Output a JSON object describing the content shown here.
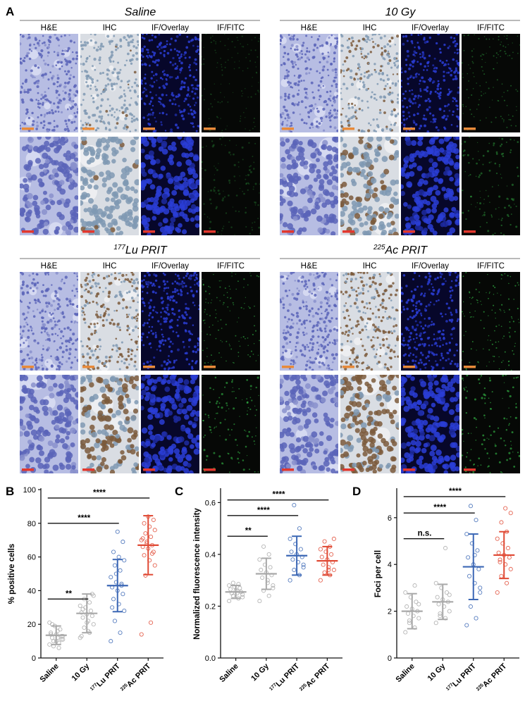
{
  "figure": {
    "panel_a_label": "A",
    "column_headers": [
      "H&E",
      "IHC",
      "IF/Overlay",
      "IF/FITC"
    ],
    "groups": [
      {
        "title_sup": "",
        "title": "Saline"
      },
      {
        "title_sup": "",
        "title": "10 Gy"
      },
      {
        "title_sup": "177",
        "title": "Lu PRIT"
      },
      {
        "title_sup": "225",
        "title": "Ac PRIT"
      }
    ],
    "colors": {
      "he_bg": "#b7bde3",
      "he_cell": "#5a64b8",
      "ihc_bg": "#d9dde3",
      "ihc_nuc_neg": "#7f99b3",
      "ihc_nuc_pos": "#7b5a3c",
      "if_bg": "#07072a",
      "if_nuc": "#2a3dd6",
      "fitc_bg": "#060806",
      "fitc_dot": "#36c24a",
      "scalebar_low": "#e88a3a",
      "scalebar_high": "#e2382e",
      "grey": "#a9a9a9",
      "blue": "#3b67b5",
      "red": "#e04a35"
    }
  },
  "chart_data": [
    {
      "panel": "B",
      "type": "scatter",
      "ylabel": "% positive cells",
      "ylim": [
        0,
        100
      ],
      "yticks": [
        0,
        20,
        40,
        60,
        80,
        100
      ],
      "categories": [
        {
          "pre": "",
          "sup": "",
          "post": "Saline"
        },
        {
          "pre": "",
          "sup": "",
          "post": "10 Gy"
        },
        {
          "pre": "",
          "sup": "177",
          "post": "Lu PRIT"
        },
        {
          "pre": "",
          "sup": "225",
          "post": "Ac PRIT"
        }
      ],
      "means": [
        13.5,
        26.5,
        43,
        67
      ],
      "sd": [
        5.5,
        11.5,
        15.5,
        17.5
      ],
      "points": [
        [
          8,
          9,
          10,
          11,
          12,
          12,
          13,
          14,
          15,
          17,
          19,
          21,
          6,
          7,
          13,
          16,
          20,
          11,
          10,
          14
        ],
        [
          12,
          15,
          18,
          20,
          22,
          24,
          25,
          26,
          27,
          28,
          30,
          31,
          33,
          35,
          37,
          16,
          29,
          38,
          21,
          13
        ],
        [
          10,
          15,
          22,
          28,
          32,
          35,
          38,
          40,
          42,
          43,
          45,
          48,
          52,
          55,
          58,
          60,
          63,
          69,
          75,
          30,
          44,
          50
        ],
        [
          14,
          21,
          49,
          55,
          58,
          61,
          63,
          65,
          66,
          67,
          68,
          70,
          72,
          74,
          76,
          78,
          80,
          82,
          84,
          71,
          62,
          69
        ]
      ],
      "significance": [
        {
          "from": 0,
          "to": 1,
          "label": "**"
        },
        {
          "from": 0,
          "to": 2,
          "label": "****"
        },
        {
          "from": 0,
          "to": 3,
          "label": "****"
        }
      ],
      "bracket_y": [
        35,
        80,
        95
      ]
    },
    {
      "panel": "C",
      "type": "scatter",
      "ylabel": "Normalized fluorescence intensity",
      "ylim": [
        0,
        0.65
      ],
      "yticks": [
        "0.0",
        "0.2",
        "0.4",
        "0.6"
      ],
      "categories": [
        {
          "pre": "",
          "sup": "",
          "post": "Saline"
        },
        {
          "pre": "",
          "sup": "",
          "post": "10 Gy"
        },
        {
          "pre": "",
          "sup": "177",
          "post": "Lu PRIT"
        },
        {
          "pre": "",
          "sup": "225",
          "post": "Ac PRIT"
        }
      ],
      "means": [
        0.255,
        0.325,
        0.395,
        0.375
      ],
      "sd": [
        0.025,
        0.06,
        0.075,
        0.055
      ],
      "points": [
        [
          0.22,
          0.23,
          0.24,
          0.245,
          0.25,
          0.25,
          0.255,
          0.26,
          0.265,
          0.27,
          0.275,
          0.28,
          0.285,
          0.29,
          0.235,
          0.26
        ],
        [
          0.22,
          0.24,
          0.26,
          0.28,
          0.3,
          0.31,
          0.32,
          0.33,
          0.34,
          0.35,
          0.36,
          0.38,
          0.4,
          0.43,
          0.27,
          0.29
        ],
        [
          0.3,
          0.32,
          0.34,
          0.36,
          0.37,
          0.38,
          0.39,
          0.4,
          0.41,
          0.42,
          0.44,
          0.46,
          0.5,
          0.59,
          0.35
        ],
        [
          0.3,
          0.32,
          0.33,
          0.34,
          0.35,
          0.36,
          0.37,
          0.38,
          0.39,
          0.4,
          0.41,
          0.42,
          0.43,
          0.45,
          0.46,
          0.34
        ]
      ],
      "significance": [
        {
          "from": 0,
          "to": 1,
          "label": "**"
        },
        {
          "from": 0,
          "to": 2,
          "label": "****"
        },
        {
          "from": 0,
          "to": 3,
          "label": "****"
        }
      ],
      "bracket_y": [
        0.47,
        0.55,
        0.61
      ]
    },
    {
      "panel": "D",
      "type": "scatter",
      "ylabel": "Foci per cell",
      "ylim": [
        0,
        7.2
      ],
      "yticks": [
        0,
        2,
        4,
        6
      ],
      "categories": [
        {
          "pre": "",
          "sup": "",
          "post": "Saline"
        },
        {
          "pre": "",
          "sup": "",
          "post": "10 Gy"
        },
        {
          "pre": "",
          "sup": "177",
          "post": "Lu PRIT"
        },
        {
          "pre": "",
          "sup": "225",
          "post": "Ac PRIT"
        }
      ],
      "means": [
        2.0,
        2.4,
        3.9,
        4.4
      ],
      "sd": [
        0.75,
        0.75,
        1.4,
        1.0
      ],
      "points": [
        [
          1.1,
          1.3,
          1.5,
          1.7,
          1.8,
          1.9,
          2.0,
          2.1,
          2.2,
          2.4,
          2.6,
          2.8,
          3.1,
          1.6,
          2.3
        ],
        [
          1.5,
          1.7,
          1.9,
          2.0,
          2.2,
          2.3,
          2.4,
          2.5,
          2.6,
          2.8,
          3.0,
          3.2,
          4.7,
          1.8,
          2.7
        ],
        [
          1.4,
          1.7,
          2.2,
          2.8,
          3.2,
          3.5,
          3.8,
          4.0,
          4.3,
          4.6,
          4.9,
          5.3,
          5.9,
          6.5,
          3.0,
          4.4
        ],
        [
          2.8,
          3.2,
          3.5,
          3.8,
          4.0,
          4.2,
          4.3,
          4.4,
          4.5,
          4.7,
          4.9,
          5.1,
          5.4,
          5.8,
          6.2,
          6.4,
          4.1
        ]
      ],
      "significance": [
        {
          "from": 0,
          "to": 1,
          "label": "n.s."
        },
        {
          "from": 0,
          "to": 2,
          "label": "****"
        },
        {
          "from": 0,
          "to": 3,
          "label": "****"
        }
      ],
      "bracket_y": [
        5.1,
        6.2,
        6.9
      ]
    }
  ]
}
